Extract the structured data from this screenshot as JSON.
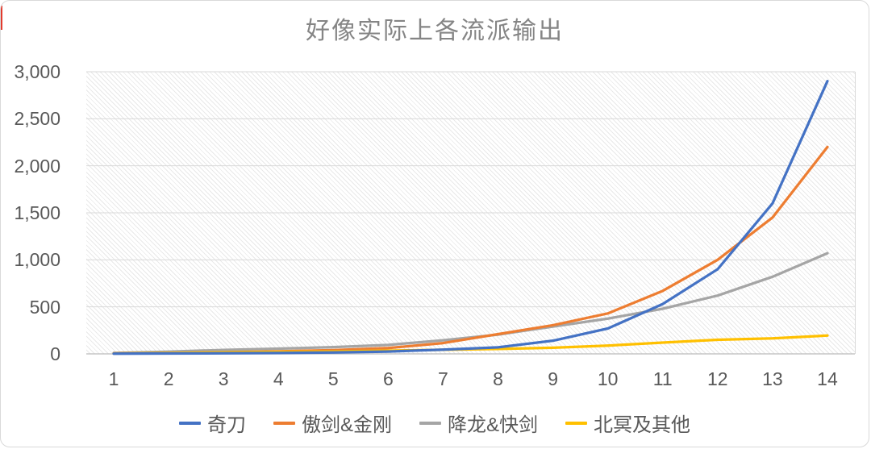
{
  "chart_data": {
    "type": "line",
    "title": "好像实际上各流派输出",
    "x": [
      1,
      2,
      3,
      4,
      5,
      6,
      7,
      8,
      9,
      10,
      11,
      12,
      13,
      14
    ],
    "x_tick_labels": [
      "1",
      "2",
      "3",
      "4",
      "5",
      "6",
      "7",
      "8",
      "9",
      "10",
      "11",
      "12",
      "13",
      "14"
    ],
    "y_ticks": [
      {
        "label": "3,000",
        "value": 3000
      },
      {
        "label": "2,500",
        "value": 2500
      },
      {
        "label": "2,000",
        "value": 2000
      },
      {
        "label": "1,500",
        "value": 1500
      },
      {
        "label": "1,000",
        "value": 1000
      },
      {
        "label": "500",
        "value": 500
      },
      {
        "label": "0",
        "value": 0
      }
    ],
    "ylim": [
      0,
      3000
    ],
    "grid": "horizontal",
    "plot_background": "diagonal-hatch",
    "legend_position": "bottom",
    "series": [
      {
        "name": "奇刀",
        "color": "#4472C4",
        "values": [
          2,
          4,
          6,
          10,
          15,
          25,
          45,
          70,
          140,
          270,
          530,
          900,
          1600,
          2900
        ]
      },
      {
        "name": "傲剑&金刚",
        "color": "#ED7D31",
        "values": [
          5,
          10,
          17,
          27,
          40,
          62,
          115,
          210,
          305,
          430,
          670,
          1000,
          1450,
          2200
        ]
      },
      {
        "name": "降龙&快剑",
        "color": "#A5A5A5",
        "values": [
          10,
          24,
          42,
          56,
          72,
          95,
          145,
          205,
          290,
          375,
          480,
          620,
          820,
          1070
        ]
      },
      {
        "name": "北冥及其他",
        "color": "#FFC000",
        "values": [
          4,
          10,
          16,
          21,
          26,
          34,
          44,
          52,
          65,
          88,
          120,
          150,
          165,
          195
        ]
      }
    ],
    "style": {
      "gridline_color": "#d9d9d9",
      "axis_line_color": "#c6c6c6",
      "tick_label_color": "#595959",
      "title_color": "#858585",
      "line_width": 3.25
    }
  }
}
